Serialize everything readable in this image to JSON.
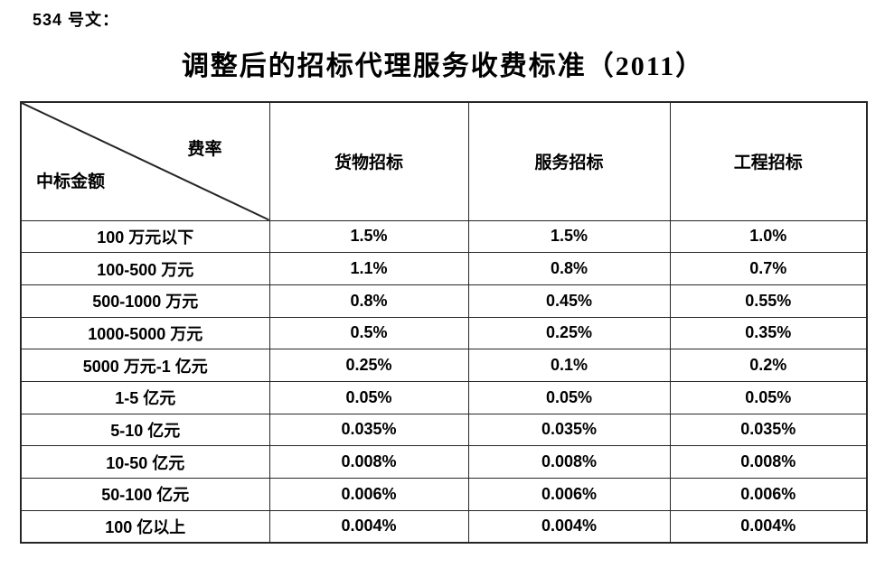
{
  "doc_label": "534 号文：",
  "title": "调整后的招标代理服务收费标准（2011）",
  "table": {
    "corner_top_label": "费率",
    "corner_bottom_label": "中标金额",
    "columns": [
      "货物招标",
      "服务招标",
      "工程招标"
    ],
    "rows": [
      {
        "amount": "100 万元以下",
        "values": [
          "1.5%",
          "1.5%",
          "1.0%"
        ]
      },
      {
        "amount": "100-500 万元",
        "values": [
          "1.1%",
          "0.8%",
          "0.7%"
        ]
      },
      {
        "amount": "500-1000 万元",
        "values": [
          "0.8%",
          "0.45%",
          "0.55%"
        ]
      },
      {
        "amount": "1000-5000 万元",
        "values": [
          "0.5%",
          "0.25%",
          "0.35%"
        ]
      },
      {
        "amount": "5000 万元-1 亿元",
        "values": [
          "0.25%",
          "0.1%",
          "0.2%"
        ]
      },
      {
        "amount": "1-5 亿元",
        "values": [
          "0.05%",
          "0.05%",
          "0.05%"
        ]
      },
      {
        "amount": "5-10 亿元",
        "values": [
          "0.035%",
          "0.035%",
          "0.035%"
        ]
      },
      {
        "amount": "10-50 亿元",
        "values": [
          "0.008%",
          "0.008%",
          "0.008%"
        ]
      },
      {
        "amount": "50-100 亿元",
        "values": [
          "0.006%",
          "0.006%",
          "0.006%"
        ]
      },
      {
        "amount": "100 亿以上",
        "values": [
          "0.004%",
          "0.004%",
          "0.004%"
        ]
      }
    ],
    "border_color": "#262626",
    "text_color": "#000000",
    "background_color": "#ffffff"
  }
}
